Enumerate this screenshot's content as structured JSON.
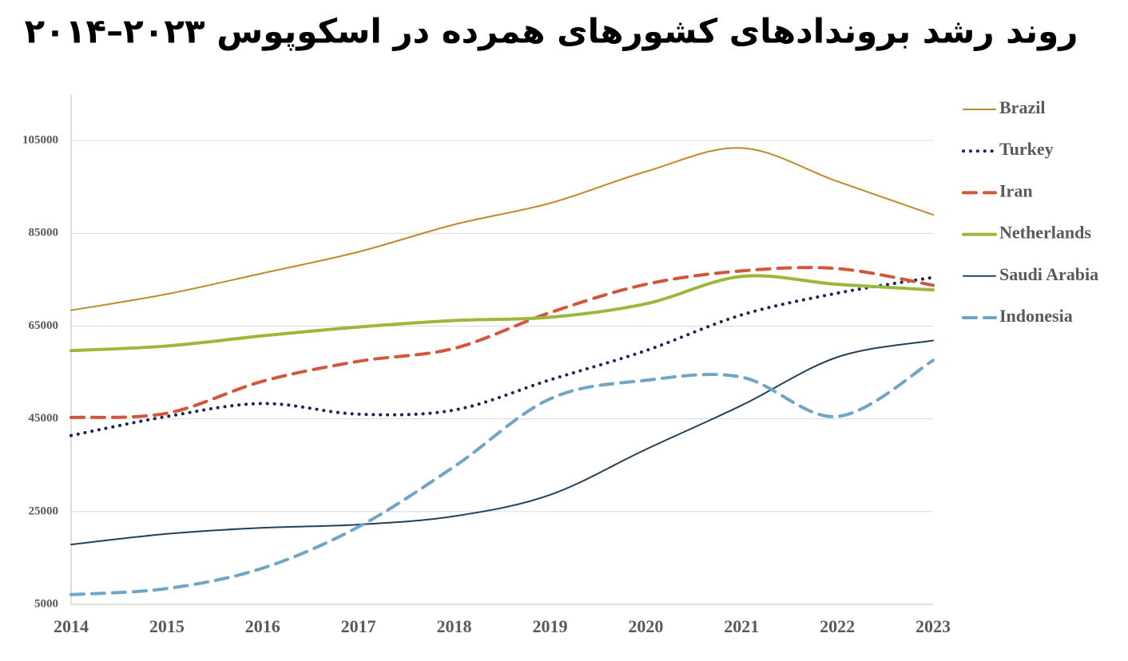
{
  "chart_data": {
    "type": "line",
    "title": "روند رشد بروندادهای کشورهای همرده در اسکوپوس ۲۰۲۳–۲۰۱۴",
    "x": [
      2014,
      2015,
      2016,
      2017,
      2018,
      2019,
      2020,
      2021,
      2022,
      2023
    ],
    "xlim": [
      2014,
      2023
    ],
    "xticks": [
      2014,
      2015,
      2016,
      2017,
      2018,
      2019,
      2020,
      2021,
      2022,
      2023
    ],
    "ylim": [
      5000,
      115000
    ],
    "yticks": [
      5000,
      25000,
      45000,
      65000,
      85000,
      105000
    ],
    "grid": true,
    "legend": "right",
    "series": [
      {
        "name": "Brazil",
        "color": "#c0892a",
        "linestyle": "solid",
        "linewidth": 2,
        "values": [
          68400,
          71900,
          76400,
          81000,
          86900,
          91500,
          98300,
          103400,
          96200,
          89000
        ]
      },
      {
        "name": "Turkey",
        "color": "#1a2656",
        "linestyle": "dotted",
        "linewidth": 4,
        "values": [
          41400,
          45500,
          48300,
          46000,
          46900,
          53400,
          59700,
          67400,
          72100,
          75500
        ]
      },
      {
        "name": "Iran",
        "color": "#d4553a",
        "linestyle": "dashed",
        "linewidth": 4,
        "values": [
          45300,
          46200,
          53100,
          57400,
          60200,
          67900,
          74000,
          76900,
          77400,
          73800
        ]
      },
      {
        "name": "Netherlands",
        "color": "#9cb83a",
        "linestyle": "solid",
        "linewidth": 4,
        "values": [
          59700,
          60700,
          62900,
          64800,
          66200,
          66900,
          69800,
          75700,
          74000,
          72800
        ]
      },
      {
        "name": "Saudi Arabia",
        "color": "#23405a",
        "linestyle": "solid",
        "linewidth": 2,
        "values": [
          17900,
          20200,
          21500,
          22200,
          24000,
          28600,
          38400,
          47900,
          58300,
          61900
        ]
      },
      {
        "name": "Indonesia",
        "color": "#6fa5c5",
        "linestyle": "dashed",
        "linewidth": 4,
        "values": [
          7100,
          8400,
          12800,
          21700,
          34700,
          49300,
          53300,
          54000,
          45500,
          57600
        ]
      }
    ]
  }
}
